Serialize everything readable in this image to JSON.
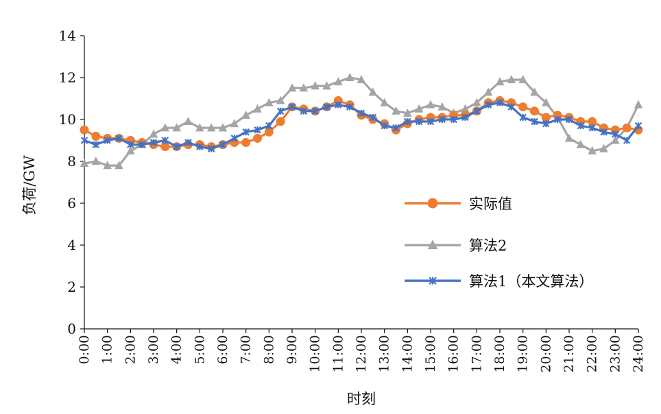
{
  "chart_data": {
    "type": "line",
    "title": "",
    "xlabel": "时刻",
    "ylabel": "负荷/GW",
    "ylim": [
      0,
      14
    ],
    "yticks": [
      "0",
      "2",
      "4",
      "6",
      "8",
      "10",
      "12",
      "14"
    ],
    "xlim": [
      0,
      24
    ],
    "xticks": [
      "0:00",
      "1:00",
      "2:00",
      "3:00",
      "4:00",
      "5:00",
      "6:00",
      "7:00",
      "8:00",
      "9:00",
      "10:00",
      "11:00",
      "12:00",
      "13:00",
      "14:00",
      "15:00",
      "16:00",
      "17:00",
      "18:00",
      "19:00",
      "20:00",
      "21:00",
      "22:00",
      "23:00",
      "24:00"
    ],
    "grid": false,
    "legend_position": "right-center",
    "x": [
      0,
      0.5,
      1,
      1.5,
      2,
      2.5,
      3,
      3.5,
      4,
      4.5,
      5,
      5.5,
      6,
      6.5,
      7,
      7.5,
      8,
      8.5,
      9,
      9.5,
      10,
      10.5,
      11,
      11.5,
      12,
      12.5,
      13,
      13.5,
      14,
      14.5,
      15,
      15.5,
      16,
      16.5,
      17,
      17.5,
      18,
      18.5,
      19,
      19.5,
      20,
      20.5,
      21,
      21.5,
      22,
      22.5,
      23,
      23.5,
      24
    ],
    "series": [
      {
        "name": "实际值",
        "color": "#ED7D31",
        "marker": "circle",
        "values": [
          9.5,
          9.2,
          9.1,
          9.1,
          9.0,
          8.9,
          8.8,
          8.7,
          8.7,
          8.8,
          8.8,
          8.7,
          8.8,
          8.9,
          8.9,
          9.1,
          9.4,
          9.9,
          10.6,
          10.5,
          10.4,
          10.6,
          10.9,
          10.7,
          10.2,
          10.0,
          9.8,
          9.5,
          9.8,
          10.0,
          10.1,
          10.1,
          10.2,
          10.2,
          10.4,
          10.8,
          10.9,
          10.8,
          10.6,
          10.4,
          10.1,
          10.2,
          10.1,
          9.9,
          9.9,
          9.6,
          9.5,
          9.6,
          9.5
        ]
      },
      {
        "name": "算法2",
        "color": "#A5A5A5",
        "marker": "triangle",
        "values": [
          7.9,
          8.0,
          7.8,
          7.8,
          8.5,
          8.8,
          9.3,
          9.6,
          9.6,
          9.9,
          9.6,
          9.6,
          9.6,
          9.8,
          10.2,
          10.5,
          10.8,
          10.9,
          11.5,
          11.5,
          11.6,
          11.6,
          11.8,
          12.0,
          11.9,
          11.3,
          10.8,
          10.4,
          10.3,
          10.5,
          10.7,
          10.6,
          10.3,
          10.5,
          10.8,
          11.3,
          11.8,
          11.9,
          11.9,
          11.3,
          10.8,
          10.1,
          9.1,
          8.8,
          8.5,
          8.6,
          9.0,
          9.6,
          10.7
        ]
      },
      {
        "name": "算法1（本文算法）",
        "color": "#4472C4",
        "marker": "x",
        "values": [
          9.0,
          8.8,
          9.0,
          9.1,
          8.8,
          8.8,
          8.9,
          9.0,
          8.7,
          8.9,
          8.7,
          8.6,
          8.8,
          9.1,
          9.4,
          9.5,
          9.7,
          10.4,
          10.6,
          10.4,
          10.4,
          10.6,
          10.7,
          10.6,
          10.3,
          10.1,
          9.7,
          9.6,
          9.9,
          9.9,
          9.9,
          10.0,
          10.0,
          10.1,
          10.4,
          10.7,
          10.8,
          10.6,
          10.1,
          9.9,
          9.8,
          10.0,
          10.0,
          9.7,
          9.6,
          9.4,
          9.3,
          9.0,
          9.7
        ]
      }
    ]
  }
}
